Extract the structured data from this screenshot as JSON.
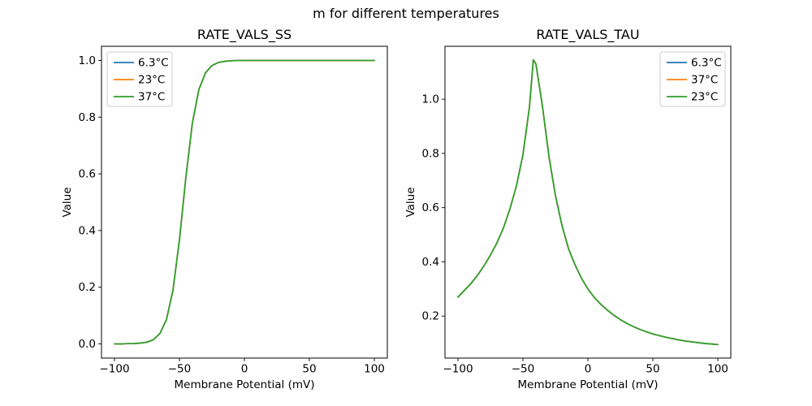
{
  "figure": {
    "suptitle": "m for different temperatures",
    "background_color": "#ffffff",
    "text_color": "#000000",
    "series_colors": {
      "blue": "#1f77b4",
      "orange": "#ff7f0e",
      "green": "#2ca02c"
    }
  },
  "chart_data": [
    {
      "type": "line",
      "title": "RATE_VALS_SS",
      "xlabel": "Membrane Potential (mV)",
      "ylabel": "Value",
      "xlim": [
        -110,
        110
      ],
      "ylim": [
        -0.05,
        1.05
      ],
      "grid": false,
      "xticks": {
        "values": [
          -100,
          -50,
          0,
          50,
          100
        ],
        "labels": [
          "−100",
          "−50",
          "0",
          "50",
          "100"
        ]
      },
      "yticks": {
        "values": [
          0.0,
          0.2,
          0.4,
          0.6,
          0.8,
          1.0
        ],
        "labels": [
          "0.0",
          "0.2",
          "0.4",
          "0.6",
          "0.8",
          "1.0"
        ]
      },
      "legend": {
        "loc": "upper left",
        "entries": [
          "6.3°C",
          "23°C",
          "37°C"
        ]
      },
      "x": [
        -100,
        -95,
        -90,
        -85,
        -80,
        -75,
        -70,
        -65,
        -60,
        -55,
        -50,
        -45,
        -40,
        -35,
        -30,
        -25,
        -20,
        -15,
        -10,
        -5,
        0,
        5,
        10,
        15,
        20,
        25,
        30,
        35,
        40,
        45,
        50,
        55,
        60,
        65,
        70,
        75,
        80,
        85,
        90,
        95,
        100
      ],
      "shared_values": [
        0.0,
        0.0,
        0.001,
        0.001,
        0.003,
        0.006,
        0.015,
        0.037,
        0.086,
        0.189,
        0.367,
        0.59,
        0.781,
        0.898,
        0.956,
        0.982,
        0.993,
        0.997,
        0.999,
        1.0,
        1.0,
        1.0,
        1.0,
        1.0,
        1.0,
        1.0,
        1.0,
        1.0,
        1.0,
        1.0,
        1.0,
        1.0,
        1.0,
        1.0,
        1.0,
        1.0,
        1.0,
        1.0,
        1.0,
        1.0,
        1.0
      ],
      "series": [
        {
          "name": "6.3°C",
          "color": "#1f77b4",
          "values": "shared"
        },
        {
          "name": "23°C",
          "color": "#ff7f0e",
          "values": "shared"
        },
        {
          "name": "37°C",
          "color": "#2ca02c",
          "values": "shared"
        }
      ],
      "note": "All three temperature curves coincide exactly (sigmoid from 0 to 1, half-activation near −47 mV); only the last-drawn green curve is visible."
    },
    {
      "type": "line",
      "title": "RATE_VALS_TAU",
      "xlabel": "Membrane Potential (mV)",
      "ylabel": "Value",
      "xlim": [
        -110,
        110
      ],
      "ylim": [
        0.045,
        1.195
      ],
      "grid": false,
      "xticks": {
        "values": [
          -100,
          -50,
          0,
          50,
          100
        ],
        "labels": [
          "−100",
          "−50",
          "0",
          "50",
          "100"
        ]
      },
      "yticks": {
        "values": [
          0.2,
          0.4,
          0.6,
          0.8,
          1.0
        ],
        "labels": [
          "0.2",
          "0.4",
          "0.6",
          "0.8",
          "1.0"
        ]
      },
      "legend": {
        "loc": "upper right",
        "entries": [
          "6.3°C",
          "37°C",
          "23°C"
        ]
      },
      "x": [
        -100,
        -95,
        -90,
        -85,
        -80,
        -75,
        -70,
        -65,
        -60,
        -55,
        -50,
        -45,
        -42,
        -40,
        -35,
        -30,
        -25,
        -20,
        -15,
        -10,
        -5,
        0,
        5,
        10,
        15,
        20,
        25,
        30,
        35,
        40,
        45,
        50,
        55,
        60,
        65,
        70,
        75,
        80,
        85,
        90,
        95,
        100
      ],
      "shared_values": [
        0.27,
        0.295,
        0.32,
        0.35,
        0.385,
        0.425,
        0.47,
        0.525,
        0.595,
        0.68,
        0.795,
        0.97,
        1.145,
        1.13,
        0.975,
        0.79,
        0.645,
        0.535,
        0.45,
        0.39,
        0.34,
        0.3,
        0.268,
        0.243,
        0.222,
        0.203,
        0.187,
        0.173,
        0.161,
        0.151,
        0.142,
        0.134,
        0.128,
        0.122,
        0.117,
        0.112,
        0.108,
        0.105,
        0.102,
        0.099,
        0.097,
        0.095
      ],
      "series": [
        {
          "name": "6.3°C",
          "color": "#1f77b4",
          "values": "shared"
        },
        {
          "name": "37°C",
          "color": "#ff7f0e",
          "values": "shared"
        },
        {
          "name": "23°C",
          "color": "#2ca02c",
          "values": "shared"
        }
      ],
      "note": "All three temperature curves coincide exactly (bell curve peaking ≈1.15 near −42 mV); only the last-drawn green curve is visible."
    }
  ]
}
